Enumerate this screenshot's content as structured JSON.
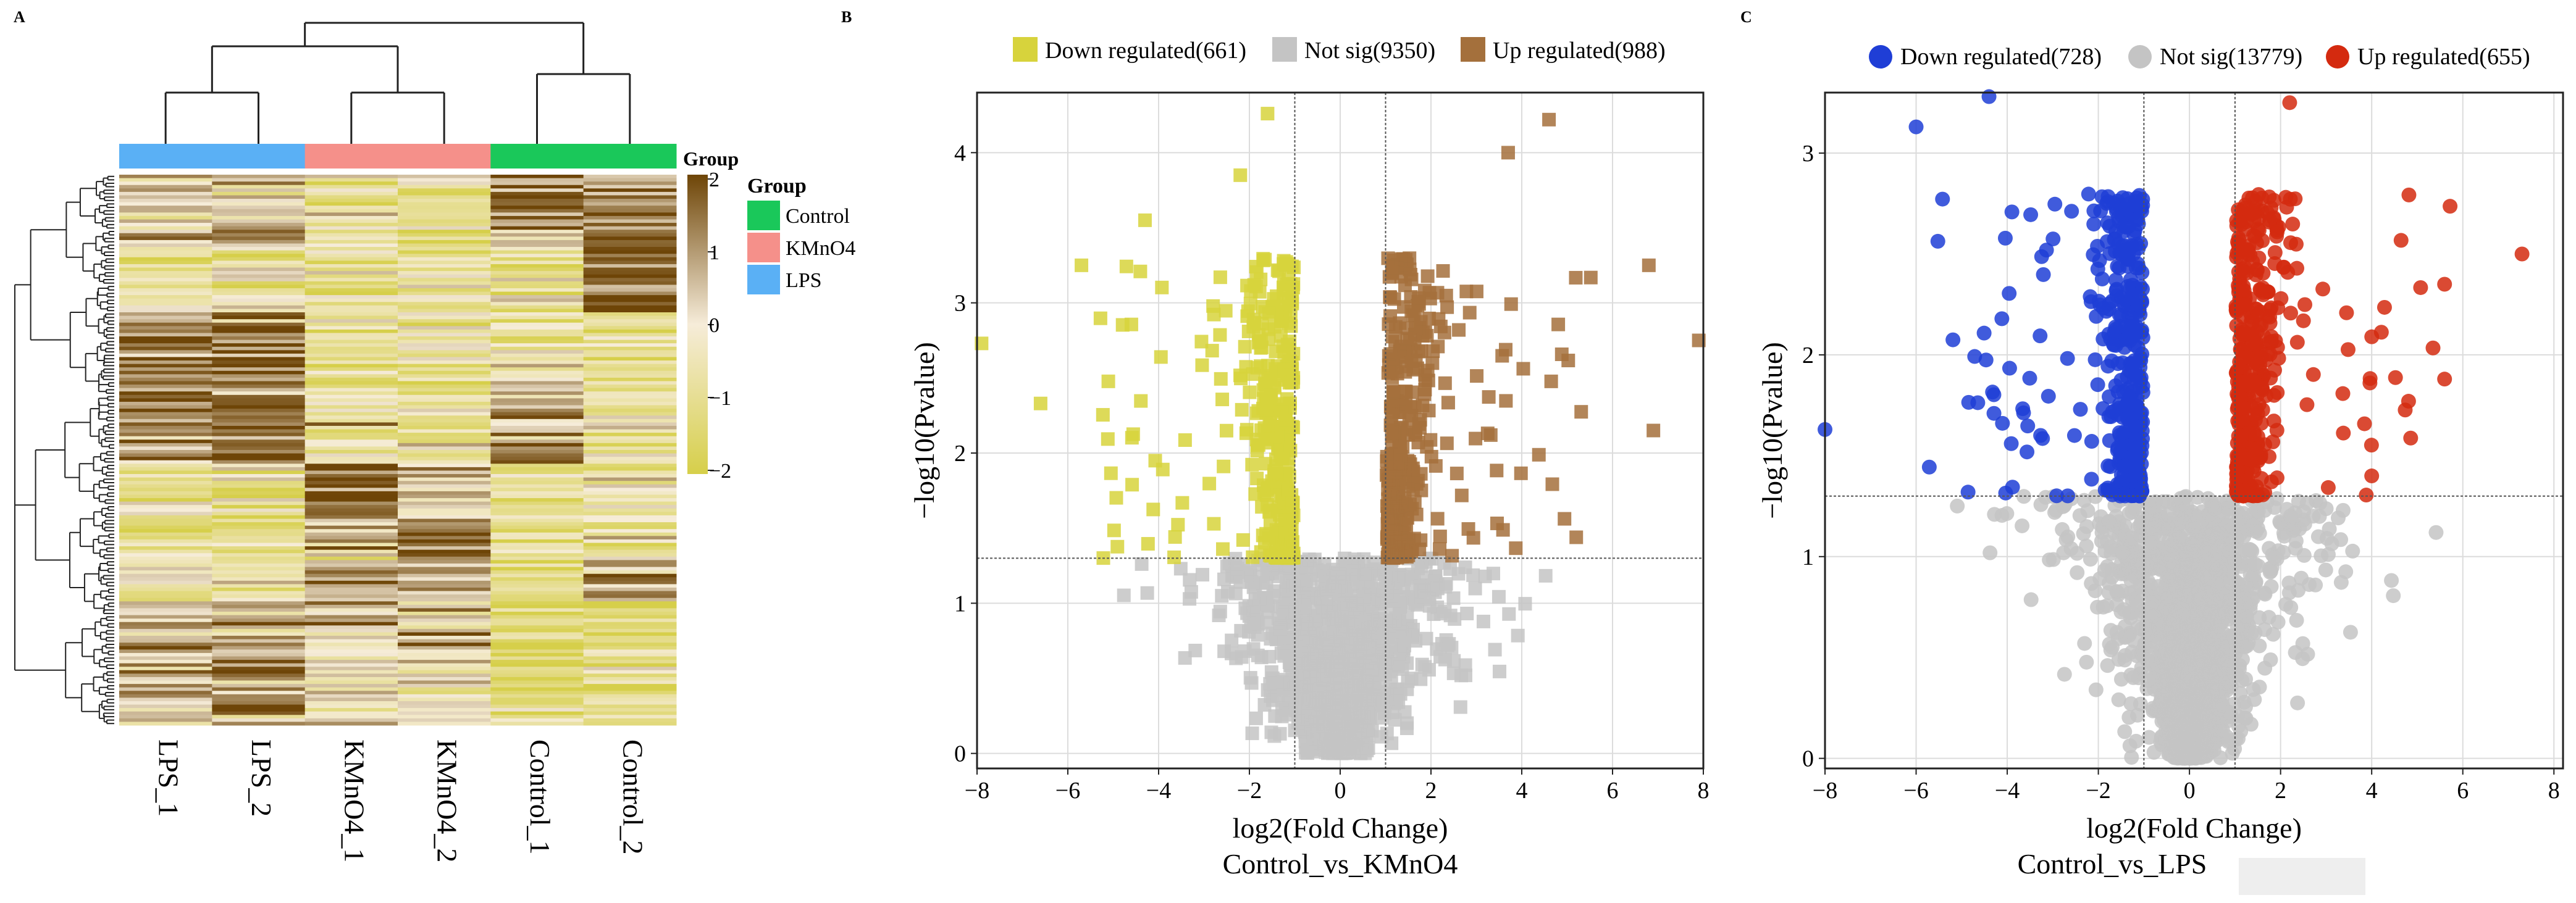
{
  "panels": {
    "a": {
      "letter": "A"
    },
    "b": {
      "letter": "B"
    },
    "c": {
      "letter": "C"
    }
  },
  "colors": {
    "heat_low": "#d6cf4a",
    "heat_mid": "#f6ecd9",
    "heat_high": "#6e4507",
    "group_control": "#1ac85a",
    "group_kmno4": "#f5908a",
    "group_lps": "#5ab0f5",
    "b_down": "#d7d33c",
    "b_notsig": "#c4c4c4",
    "b_up": "#a4703c",
    "c_down": "#1f3ed6",
    "c_notsig": "#c4c4c4",
    "c_up": "#d42a0f",
    "grid": "#dcdcdc"
  },
  "chart_data": [
    {
      "type": "heatmap",
      "columns": [
        "LPS_1",
        "LPS_2",
        "KMnO4_1",
        "KMnO4_2",
        "Control_1",
        "Control_2"
      ],
      "column_groups": [
        "LPS",
        "LPS",
        "KMnO4",
        "KMnO4",
        "Control",
        "Control"
      ],
      "colorbar": {
        "title": "Group",
        "min": -2,
        "max": 2,
        "ticks": [
          "2",
          "1",
          "0",
          "−1",
          "−2"
        ]
      },
      "legend": {
        "title": "Group",
        "items": [
          "Control",
          "KMnO4",
          "LPS"
        ]
      },
      "row_dendrogram": true,
      "column_dendrogram": true,
      "grid": false
    },
    {
      "type": "scatter",
      "xlabel": "log2(Fold Change)",
      "ylabel": "−log10(Pvalue)",
      "subtitle": "Control_vs_KMnO4",
      "xlim": [
        -8,
        8
      ],
      "ylim": [
        -0.1,
        4.4
      ],
      "xticks": [
        -8,
        -6,
        -4,
        -2,
        0,
        2,
        4,
        6,
        8
      ],
      "yticks": [
        0,
        1,
        2,
        3,
        4
      ],
      "thresholds": {
        "log2fc": [
          -1,
          1
        ],
        "pvalue_line": 1.3
      },
      "legend_position": "top",
      "grid": true,
      "series": [
        {
          "name": "Down regulated(661)",
          "count": 661,
          "marker": "square"
        },
        {
          "name": "Not sig(9350)",
          "count": 9350,
          "marker": "square"
        },
        {
          "name": "Up regulated(988)",
          "count": 988,
          "marker": "square"
        }
      ],
      "notable_points": [
        {
          "x": -1.6,
          "y": 4.26
        },
        {
          "x": -2.2,
          "y": 3.85
        },
        {
          "x": -4.3,
          "y": 3.55
        },
        {
          "x": -5.7,
          "y": 3.25
        },
        {
          "x": -7.9,
          "y": 2.73
        },
        {
          "x": -6.6,
          "y": 2.33
        },
        {
          "x": 4.6,
          "y": 4.22
        },
        {
          "x": 3.7,
          "y": 4.0
        },
        {
          "x": 6.8,
          "y": 3.25
        },
        {
          "x": 7.9,
          "y": 2.75
        },
        {
          "x": 6.9,
          "y": 2.15
        }
      ]
    },
    {
      "type": "scatter",
      "xlabel": "log2(Fold Change)",
      "ylabel": "−log10(Pvalue)",
      "subtitle": "Control_vs_LPS",
      "xlim": [
        -8,
        8.2
      ],
      "ylim": [
        -0.05,
        3.3
      ],
      "xticks": [
        -8,
        -6,
        -4,
        -2,
        0,
        2,
        4,
        6,
        8
      ],
      "yticks": [
        0,
        1,
        2,
        3
      ],
      "thresholds": {
        "log2fc": [
          -1,
          1
        ],
        "pvalue_line": 1.3
      },
      "legend_position": "top",
      "grid": true,
      "series": [
        {
          "name": "Down regulated(728)",
          "count": 728,
          "marker": "circle"
        },
        {
          "name": "Not sig(13779)",
          "count": 13779,
          "marker": "circle"
        },
        {
          "name": "Up regulated(655)",
          "count": 655,
          "marker": "circle"
        }
      ],
      "notable_points": [
        {
          "x": -4.4,
          "y": 3.28
        },
        {
          "x": -6.0,
          "y": 3.13
        },
        {
          "x": -8.0,
          "y": 1.63
        },
        {
          "x": 7.3,
          "y": 2.5
        },
        {
          "x": 5.6,
          "y": 2.35
        },
        {
          "x": 5.6,
          "y": 1.88
        },
        {
          "x": 2.2,
          "y": 3.25
        },
        {
          "x": 4.0,
          "y": 1.4
        }
      ]
    }
  ]
}
